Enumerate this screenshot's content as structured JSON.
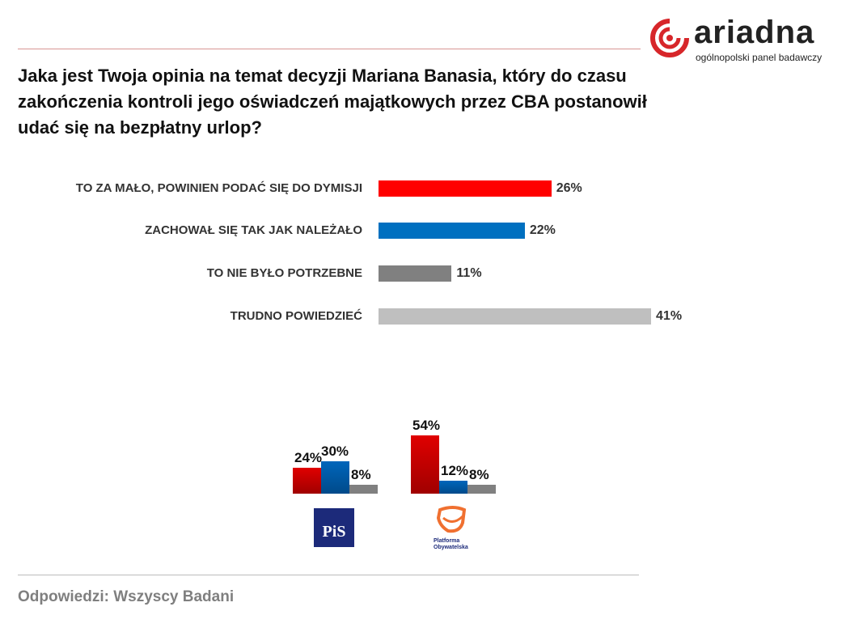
{
  "logo": {
    "name": "ariadna",
    "tagline": "ogólnopolski panel badawczy",
    "color": "#d7262a"
  },
  "question": "Jaka jest Twoja opinia na temat decyzji Mariana Banasia, który do czasu zakończenia kontroli jego oświadczeń majątkowych przez CBA postanowił udać się na bezpłatny urlop?",
  "footer": "Odpowiedzi: Wszyscy Badani",
  "chart_data": [
    {
      "type": "bar",
      "orientation": "horizontal",
      "categories": [
        "TO ZA MAŁO, POWINIEN PODAĆ SIĘ DO DYMISJI",
        "ZACHOWAŁ SIĘ TAK JAK NALEŻAŁO",
        "TO NIE BYŁO POTRZEBNE",
        "TRUDNO POWIEDZIEĆ"
      ],
      "values": [
        26,
        22,
        11,
        41
      ],
      "labels": [
        "26%",
        "22%",
        "11%",
        "41%"
      ],
      "colors": [
        "#ff0000",
        "#0070c0",
        "#808080",
        "#bfbfbf"
      ],
      "grid": false
    },
    {
      "type": "bar",
      "orientation": "vertical",
      "categories": [
        "PiS",
        "Platforma Obywatelska"
      ],
      "series": [
        {
          "values": [
            24,
            54
          ],
          "labels": [
            "24%",
            "54%"
          ],
          "color": "#e00000"
        },
        {
          "values": [
            30,
            12
          ],
          "labels": [
            "30%",
            "12%"
          ],
          "color": "#0066bb"
        },
        {
          "values": [
            8,
            8
          ],
          "labels": [
            "8%",
            "8%"
          ],
          "color": "#808080"
        }
      ],
      "logos": [
        {
          "text": "PiS",
          "color": "#1c2a7a"
        },
        {
          "text": "Platforma Obywatelska",
          "color": "#f07030"
        }
      ],
      "grid": false
    }
  ]
}
